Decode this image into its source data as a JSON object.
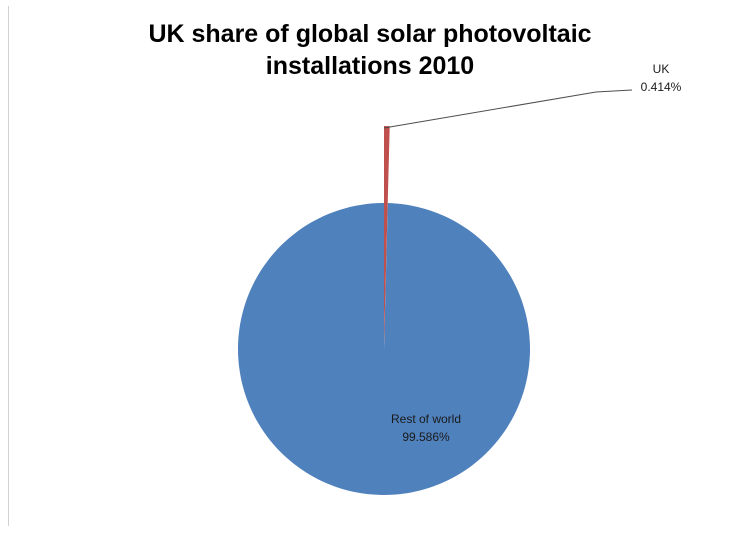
{
  "chart_data": {
    "type": "pie",
    "title": "UK share of global solar photovoltaic installations 2010",
    "title_lines": [
      "UK share of global solar photovoltaic",
      "installations 2010"
    ],
    "slices": [
      {
        "name": "UK",
        "percent_label": "0.414%",
        "value": 0.414,
        "color": "#C0504D",
        "exploded": true
      },
      {
        "name": "Rest of world",
        "percent_label": "99.586%",
        "value": 99.586,
        "color": "#4F81BD",
        "exploded": false
      }
    ],
    "legend": "none",
    "start_angle": "12 o'clock, clockwise"
  }
}
